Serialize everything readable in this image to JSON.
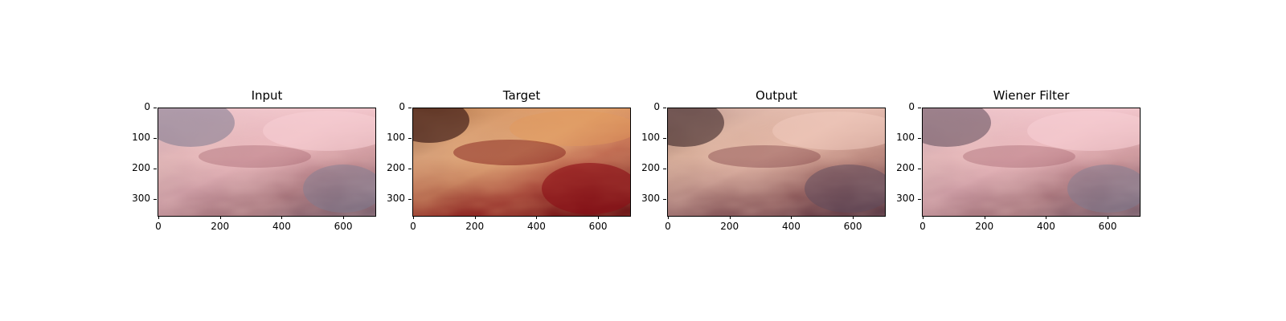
{
  "panels": [
    {
      "id": "input",
      "title": "Input"
    },
    {
      "id": "target",
      "title": "Target"
    },
    {
      "id": "output",
      "title": "Output"
    },
    {
      "id": "wiener",
      "title": "Wiener Filter"
    }
  ],
  "axes": {
    "x_ticks": [
      "0",
      "200",
      "400",
      "600"
    ],
    "y_ticks": [
      "0",
      "100",
      "200",
      "300"
    ],
    "x_range": [
      0,
      704
    ],
    "y_range": [
      0,
      352
    ]
  }
}
